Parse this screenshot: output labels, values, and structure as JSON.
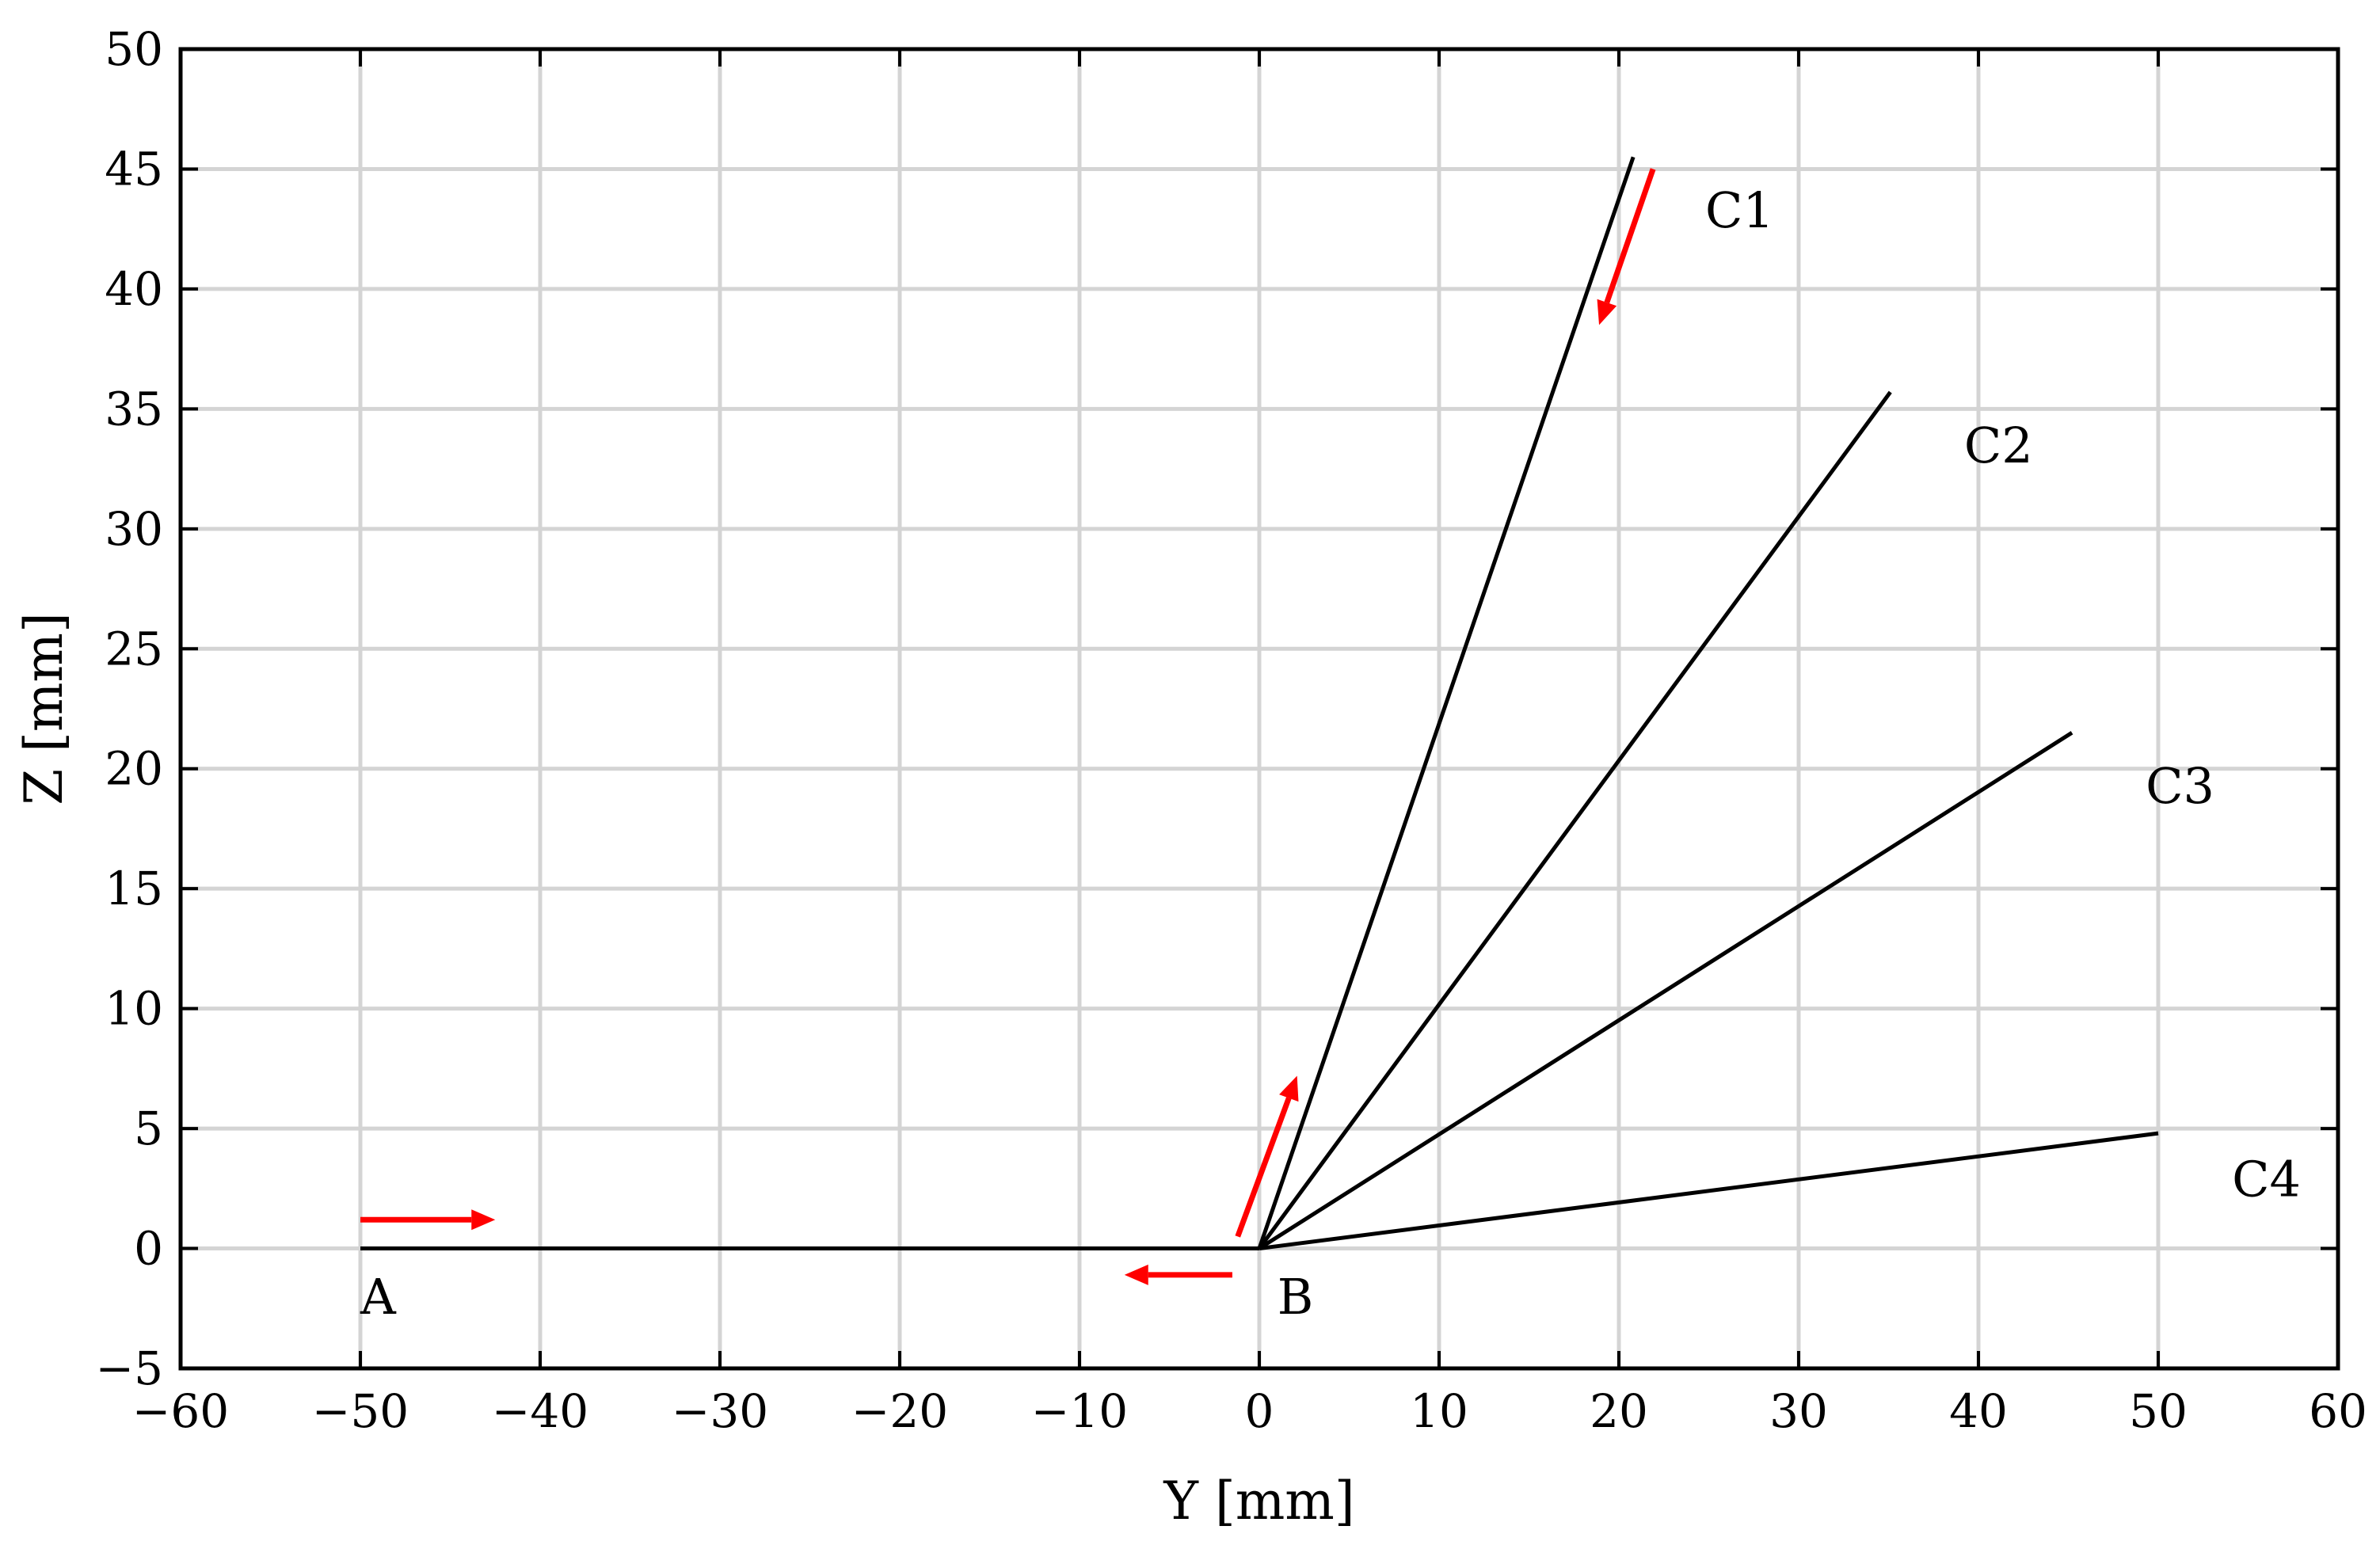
{
  "chart_data": {
    "type": "line",
    "xlabel": "Y [mm]",
    "ylabel": "Z [mm]",
    "xlim": [
      -60,
      60
    ],
    "ylim": [
      -5,
      50
    ],
    "xticks": [
      -60,
      -50,
      -40,
      -30,
      -20,
      -10,
      0,
      10,
      20,
      30,
      40,
      50,
      60
    ],
    "yticks": [
      -5,
      0,
      5,
      10,
      15,
      20,
      25,
      30,
      35,
      40,
      45,
      50
    ],
    "xtick_labels": [
      "−60",
      "−50",
      "−40",
      "−30",
      "−20",
      "−10",
      "0",
      "10",
      "20",
      "30",
      "40",
      "50",
      "60"
    ],
    "ytick_labels": [
      "−5",
      "0",
      "5",
      "10",
      "15",
      "20",
      "25",
      "30",
      "35",
      "40",
      "45",
      "50"
    ],
    "grid": true,
    "series": [
      {
        "x": [
          -50,
          0
        ],
        "y": [
          0,
          0
        ]
      },
      {
        "x": [
          0,
          20.8
        ],
        "y": [
          0,
          45.5
        ]
      },
      {
        "x": [
          0,
          35.1
        ],
        "y": [
          0,
          35.7
        ]
      },
      {
        "x": [
          0,
          45.2
        ],
        "y": [
          0,
          21.5
        ]
      },
      {
        "x": [
          0,
          50
        ],
        "y": [
          0,
          4.8
        ]
      }
    ],
    "annotations": [
      {
        "text": "A",
        "x": -50,
        "y": -2
      },
      {
        "text": "B",
        "x": 1,
        "y": -2
      },
      {
        "text": "C1",
        "x": 24.8,
        "y": 43.3
      },
      {
        "text": "C2",
        "x": 39.2,
        "y": 33.5
      },
      {
        "text": "C3",
        "x": 49.3,
        "y": 19.3
      },
      {
        "text": "C4",
        "x": 54.1,
        "y": 2.9
      }
    ],
    "arrows": [
      {
        "from": [
          -50,
          1.2
        ],
        "to": [
          -42.5,
          1.2
        ]
      },
      {
        "from": [
          -1.5,
          -1.1
        ],
        "to": [
          -7.5,
          -1.1
        ]
      },
      {
        "from": [
          -1.2,
          0.5
        ],
        "to": [
          2.1,
          7.2
        ]
      },
      {
        "from": [
          21.9,
          45.0
        ],
        "to": [
          18.9,
          38.5
        ]
      }
    ],
    "colors": {
      "lines": "#000000",
      "arrows": "#ff0000",
      "grid": "#d4d4d4",
      "background": "#ffffff"
    }
  }
}
